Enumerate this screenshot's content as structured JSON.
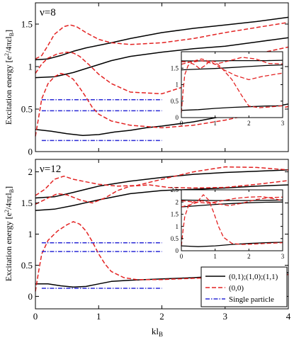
{
  "colors": {
    "black": "#000000",
    "red": "#e32222",
    "blue": "#2a2ad6"
  },
  "shared": {
    "xlabel": "kl",
    "xlabel_sub": "B",
    "ylabel_main": "Excitation energy [e",
    "ylabel_sup": "2",
    "ylabel_tail": "/4πεl",
    "ylabel_sub": "B",
    "ylabel_close": "]",
    "legend": [
      {
        "label": "(0,1);(1,0);(1,1)",
        "style": "solid",
        "color": "#000000"
      },
      {
        "label": "(0,0)",
        "style": "dashed",
        "color": "#e32222"
      },
      {
        "label": "Single particle",
        "style": "dashdot",
        "color": "#2a2ad6"
      }
    ],
    "legend_placement": "bottom-right"
  },
  "chart_data": [
    {
      "type": "line",
      "panel_label": "ν=8",
      "xlim": [
        0,
        4
      ],
      "ylim": [
        0,
        1.75
      ],
      "xticks": [
        0,
        1,
        2,
        3,
        4
      ],
      "xtick_labels": [
        "",
        "",
        "",
        "",
        ""
      ],
      "yticks": [
        0,
        0.5,
        1,
        1.5
      ],
      "ytick_labels": [
        "0",
        "0.5",
        "1",
        "1.5"
      ],
      "series": [
        {
          "style": "solid",
          "color": "#000000",
          "x": [
            0,
            0.2,
            0.4,
            0.6,
            0.8,
            1.0,
            1.2,
            1.5,
            2.0,
            2.5,
            3.0,
            3.5,
            4.0
          ],
          "y": [
            1.08,
            1.09,
            1.13,
            1.18,
            1.22,
            1.25,
            1.28,
            1.33,
            1.4,
            1.45,
            1.49,
            1.53,
            1.58
          ]
        },
        {
          "style": "solid",
          "color": "#000000",
          "x": [
            0,
            0.3,
            0.6,
            0.9,
            1.2,
            1.5,
            2.0,
            2.5,
            3.0,
            3.5,
            4.0
          ],
          "y": [
            0.87,
            0.88,
            0.93,
            1.0,
            1.07,
            1.12,
            1.17,
            1.21,
            1.24,
            1.29,
            1.34
          ]
        },
        {
          "style": "solid",
          "color": "#000000",
          "x": [
            0,
            0.25,
            0.5,
            0.75,
            1.0,
            1.25,
            1.5,
            1.75,
            2.0,
            2.5,
            3.0,
            3.5,
            4.0
          ],
          "y": [
            0.26,
            0.24,
            0.21,
            0.19,
            0.2,
            0.23,
            0.25,
            0.28,
            0.3,
            0.35,
            0.42,
            0.49,
            0.56
          ]
        },
        {
          "style": "dashed",
          "color": "#e32222",
          "x": [
            0,
            0.1,
            0.2,
            0.3,
            0.45,
            0.55,
            0.65,
            0.8,
            1.0,
            1.2,
            1.5,
            2.0,
            2.5,
            3.0,
            3.5,
            4.0
          ],
          "y": [
            1.09,
            1.13,
            1.25,
            1.38,
            1.47,
            1.49,
            1.47,
            1.4,
            1.32,
            1.28,
            1.26,
            1.28,
            1.33,
            1.4,
            1.46,
            1.52
          ]
        },
        {
          "style": "dashed",
          "color": "#e32222",
          "x": [
            0,
            0.1,
            0.2,
            0.35,
            0.5,
            0.6,
            0.7,
            0.85,
            1.0,
            1.2,
            1.5,
            2.0,
            2.5,
            3.0,
            3.5,
            4.0
          ],
          "y": [
            0.92,
            1.03,
            1.1,
            1.15,
            1.17,
            1.16,
            1.12,
            1.02,
            0.91,
            0.8,
            0.7,
            0.68,
            0.8,
            1.0,
            1.15,
            1.23
          ]
        },
        {
          "style": "dashed",
          "color": "#e32222",
          "x": [
            0,
            0.05,
            0.1,
            0.2,
            0.3,
            0.4,
            0.5,
            0.6,
            0.7,
            0.8,
            0.9,
            1.0,
            1.2,
            1.5,
            2.0,
            2.5,
            3.0,
            3.5,
            4.0
          ],
          "y": [
            0.18,
            0.4,
            0.62,
            0.8,
            0.88,
            0.92,
            0.9,
            0.85,
            0.75,
            0.64,
            0.52,
            0.44,
            0.36,
            0.31,
            0.28,
            0.31,
            0.37,
            0.45,
            0.53
          ]
        },
        {
          "style": "dashdot",
          "color": "#2a2ad6",
          "x": [
            0.1,
            2.0
          ],
          "y": [
            0.61,
            0.61
          ]
        },
        {
          "style": "dashdot",
          "color": "#2a2ad6",
          "x": [
            0.1,
            2.0
          ],
          "y": [
            0.48,
            0.48
          ]
        },
        {
          "style": "dashdot",
          "color": "#2a2ad6",
          "x": [
            0.1,
            2.0
          ],
          "y": [
            0.13,
            0.13
          ]
        }
      ],
      "inset": {
        "xlim": [
          0,
          3
        ],
        "ylim": [
          0,
          2
        ],
        "xticks": [
          0,
          1,
          2,
          3
        ],
        "xtick_labels": [
          "0",
          "1",
          "2",
          "3"
        ],
        "yticks": [
          0,
          0.5,
          1,
          1.5
        ],
        "ytick_labels": [
          "0",
          "0.5",
          "1",
          "1.5"
        ],
        "series": [
          {
            "style": "solid",
            "color": "#000000",
            "x": [
              0,
              0.5,
              1.0,
              1.5,
              2.0,
              2.5,
              3.0
            ],
            "y": [
              1.72,
              1.72,
              1.72,
              1.73,
              1.73,
              1.73,
              1.74
            ]
          },
          {
            "style": "solid",
            "color": "#000000",
            "x": [
              0,
              0.5,
              1.0,
              1.5,
              2.0,
              2.5,
              3.0
            ],
            "y": [
              1.45,
              1.47,
              1.49,
              1.52,
              1.55,
              1.58,
              1.6
            ]
          },
          {
            "style": "solid",
            "color": "#000000",
            "x": [
              0,
              0.5,
              1.0,
              1.5,
              2.0,
              2.5,
              3.0
            ],
            "y": [
              0.22,
              0.24,
              0.28,
              0.31,
              0.33,
              0.35,
              0.36
            ]
          },
          {
            "style": "dashed",
            "color": "#e32222",
            "x": [
              0,
              0.3,
              0.6,
              1.0,
              1.4,
              1.8,
              2.2,
              2.6,
              3.0
            ],
            "y": [
              1.7,
              1.68,
              1.73,
              1.62,
              1.72,
              1.83,
              1.78,
              1.64,
              1.63
            ]
          },
          {
            "style": "dashed",
            "color": "#e32222",
            "x": [
              0,
              0.3,
              0.6,
              0.9,
              1.2,
              1.6,
              2.0,
              2.4,
              3.0
            ],
            "y": [
              1.62,
              1.7,
              1.78,
              1.68,
              1.48,
              1.28,
              1.15,
              1.25,
              1.35
            ]
          },
          {
            "style": "dashed",
            "color": "#e32222",
            "x": [
              0,
              0.05,
              0.1,
              0.2,
              0.3,
              0.4,
              0.55,
              0.7,
              0.85,
              1.0,
              1.2,
              1.5,
              1.8,
              2.0,
              2.3,
              2.6,
              3.0
            ],
            "y": [
              0.15,
              0.8,
              1.3,
              1.58,
              1.65,
              1.6,
              1.48,
              1.58,
              1.72,
              1.7,
              1.5,
              1.15,
              0.65,
              0.35,
              0.3,
              0.32,
              0.36
            ]
          }
        ]
      }
    },
    {
      "type": "line",
      "panel_label": "ν=12",
      "xlim": [
        0,
        4
      ],
      "ylim": [
        -0.2,
        2.2
      ],
      "xticks": [
        0,
        1,
        2,
        3,
        4
      ],
      "xtick_labels": [
        "0",
        "1",
        "2",
        "3",
        "4"
      ],
      "yticks": [
        0,
        0.5,
        1,
        1.5,
        2
      ],
      "ytick_labels": [
        "0",
        "0.5",
        "1",
        "1.5",
        "2"
      ],
      "series": [
        {
          "style": "solid",
          "color": "#000000",
          "x": [
            0,
            0.3,
            0.6,
            1.0,
            1.5,
            2.0,
            2.5,
            3.0,
            3.5,
            4.0
          ],
          "y": [
            1.58,
            1.6,
            1.67,
            1.77,
            1.85,
            1.91,
            1.96,
            1.99,
            2.01,
            2.03
          ]
        },
        {
          "style": "solid",
          "color": "#000000",
          "x": [
            0,
            0.3,
            0.6,
            1.0,
            1.5,
            2.0,
            2.5,
            3.0,
            3.5,
            4.0
          ],
          "y": [
            1.38,
            1.4,
            1.46,
            1.55,
            1.65,
            1.7,
            1.72,
            1.74,
            1.77,
            1.79
          ]
        },
        {
          "style": "solid",
          "color": "#000000",
          "x": [
            0,
            0.2,
            0.4,
            0.6,
            0.8,
            1.0,
            1.2,
            1.5,
            2.0,
            2.5,
            3.0,
            3.5,
            4.0
          ],
          "y": [
            0.2,
            0.2,
            0.17,
            0.15,
            0.16,
            0.2,
            0.24,
            0.26,
            0.28,
            0.3,
            0.33,
            0.36,
            0.38
          ]
        },
        {
          "style": "dashed",
          "color": "#e32222",
          "x": [
            0,
            0.15,
            0.3,
            0.45,
            0.6,
            0.8,
            1.0,
            1.3,
            1.6,
            2.0,
            2.5,
            3.0,
            3.5,
            4.0
          ],
          "y": [
            1.62,
            1.72,
            1.88,
            1.93,
            1.88,
            1.84,
            1.8,
            1.77,
            1.78,
            1.88,
            2.0,
            2.08,
            2.07,
            2.03
          ]
        },
        {
          "style": "dashed",
          "color": "#e32222",
          "x": [
            0,
            0.1,
            0.2,
            0.35,
            0.5,
            0.7,
            0.9,
            1.1,
            1.3,
            1.5,
            1.8,
            2.1,
            2.5,
            3.0,
            3.5,
            4.0
          ],
          "y": [
            1.48,
            1.53,
            1.58,
            1.65,
            1.63,
            1.55,
            1.5,
            1.58,
            1.7,
            1.77,
            1.79,
            1.75,
            1.74,
            1.75,
            1.8,
            1.86
          ]
        },
        {
          "style": "dashed",
          "color": "#e32222",
          "x": [
            0,
            0.05,
            0.1,
            0.2,
            0.35,
            0.5,
            0.6,
            0.7,
            0.8,
            0.9,
            1.0,
            1.1,
            1.2,
            1.4,
            1.6,
            2.0,
            2.5,
            3.0,
            3.5,
            4.0
          ],
          "y": [
            0.08,
            0.4,
            0.68,
            0.9,
            1.05,
            1.15,
            1.2,
            1.16,
            1.05,
            0.88,
            0.68,
            0.52,
            0.4,
            0.3,
            0.27,
            0.27,
            0.29,
            0.31,
            0.33,
            0.35
          ]
        },
        {
          "style": "dashdot",
          "color": "#2a2ad6",
          "x": [
            0.1,
            2.0
          ],
          "y": [
            0.86,
            0.86
          ]
        },
        {
          "style": "dashdot",
          "color": "#2a2ad6",
          "x": [
            0.1,
            2.0
          ],
          "y": [
            0.72,
            0.72
          ]
        },
        {
          "style": "dashdot",
          "color": "#2a2ad6",
          "x": [
            0.1,
            2.0
          ],
          "y": [
            0.13,
            0.13
          ]
        }
      ],
      "inset": {
        "xlim": [
          0,
          3
        ],
        "ylim": [
          0,
          2.5
        ],
        "xticks": [
          0,
          1,
          2,
          3
        ],
        "xtick_labels": [
          "0",
          "1",
          "2",
          "3"
        ],
        "yticks": [
          0,
          0.5,
          1,
          1.5,
          2,
          2.5
        ],
        "ytick_labels": [
          "0",
          "0.5",
          "1",
          "1.5",
          "2",
          "2.5"
        ],
        "series": [
          {
            "style": "solid",
            "color": "#000000",
            "x": [
              0,
              0.5,
              1.0,
              1.5,
              2.0,
              2.5,
              3.0
            ],
            "y": [
              2.08,
              2.07,
              2.06,
              2.06,
              2.06,
              2.07,
              2.08
            ]
          },
          {
            "style": "solid",
            "color": "#000000",
            "x": [
              0,
              0.5,
              1.0,
              1.5,
              2.0,
              2.5,
              3.0
            ],
            "y": [
              1.8,
              1.85,
              1.9,
              1.94,
              1.97,
              1.99,
              2.0
            ]
          },
          {
            "style": "solid",
            "color": "#000000",
            "x": [
              0,
              0.5,
              1.0,
              1.5,
              2.0,
              2.5,
              3.0
            ],
            "y": [
              0.2,
              0.17,
              0.2,
              0.26,
              0.3,
              0.33,
              0.35
            ]
          },
          {
            "style": "dashed",
            "color": "#e32222",
            "x": [
              0,
              0.4,
              0.8,
              1.2,
              1.6,
              2.0,
              2.4,
              2.8,
              3.0
            ],
            "y": [
              2.05,
              2.0,
              1.95,
              2.05,
              2.15,
              2.2,
              2.22,
              2.12,
              2.05
            ]
          },
          {
            "style": "dashed",
            "color": "#e32222",
            "x": [
              0,
              0.3,
              0.6,
              1.0,
              1.4,
              1.8,
              2.2,
              2.6,
              3.0
            ],
            "y": [
              1.8,
              1.9,
              2.05,
              1.95,
              1.85,
              1.95,
              2.1,
              2.18,
              2.2
            ]
          },
          {
            "style": "dashed",
            "color": "#e32222",
            "x": [
              0,
              0.05,
              0.1,
              0.2,
              0.35,
              0.5,
              0.65,
              0.8,
              0.95,
              1.1,
              1.25,
              1.5,
              1.8,
              2.1,
              2.5,
              3.0
            ],
            "y": [
              0.2,
              0.85,
              1.4,
              1.8,
              2.0,
              2.05,
              2.3,
              2.1,
              1.6,
              1.0,
              0.55,
              0.3,
              0.26,
              0.27,
              0.3,
              0.33
            ]
          }
        ]
      }
    }
  ]
}
